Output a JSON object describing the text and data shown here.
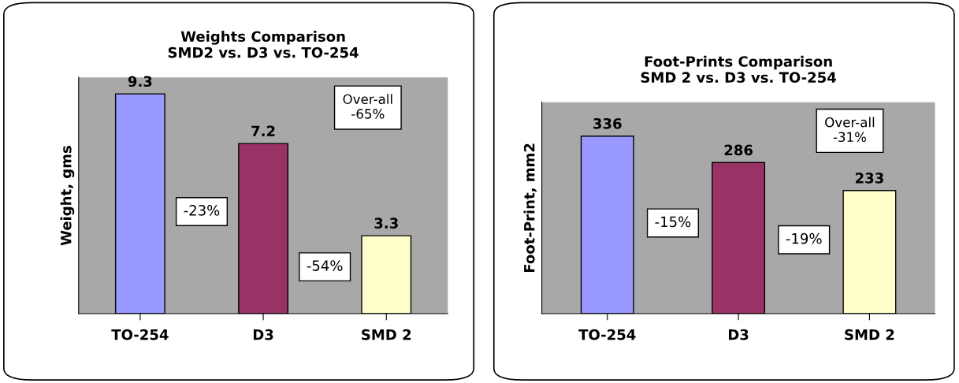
{
  "chart_data": [
    {
      "type": "bar",
      "title": "Weights Comparison\nSMD2 vs. D3 vs. TO-254",
      "ylabel": "Weight, gms",
      "categories": [
        "TO-254",
        "D3",
        "SMD 2"
      ],
      "values": [
        9.3,
        7.2,
        3.3
      ],
      "colors": [
        "#9999ff",
        "#993366",
        "#ffffcc"
      ],
      "ylim": [
        0,
        10
      ],
      "tick_labels": "x",
      "data_labels": true,
      "grid": false,
      "legend": false,
      "annotations": [
        "-23%",
        "-54%",
        "Over-all\n-65%"
      ]
    },
    {
      "type": "bar",
      "title": "Foot-Prints Comparison\nSMD 2 vs. D3 vs. TO-254",
      "ylabel": "Foot-Print, mm2",
      "categories": [
        "TO-254",
        "D3",
        "SMD 2"
      ],
      "values": [
        336,
        286,
        233
      ],
      "colors": [
        "#9999ff",
        "#993366",
        "#ffffcc"
      ],
      "ylim": [
        0,
        400
      ],
      "tick_labels": "x",
      "data_labels": true,
      "grid": false,
      "legend": false,
      "annotations": [
        "-15%",
        "-19%",
        "Over-all\n-31%"
      ]
    }
  ]
}
